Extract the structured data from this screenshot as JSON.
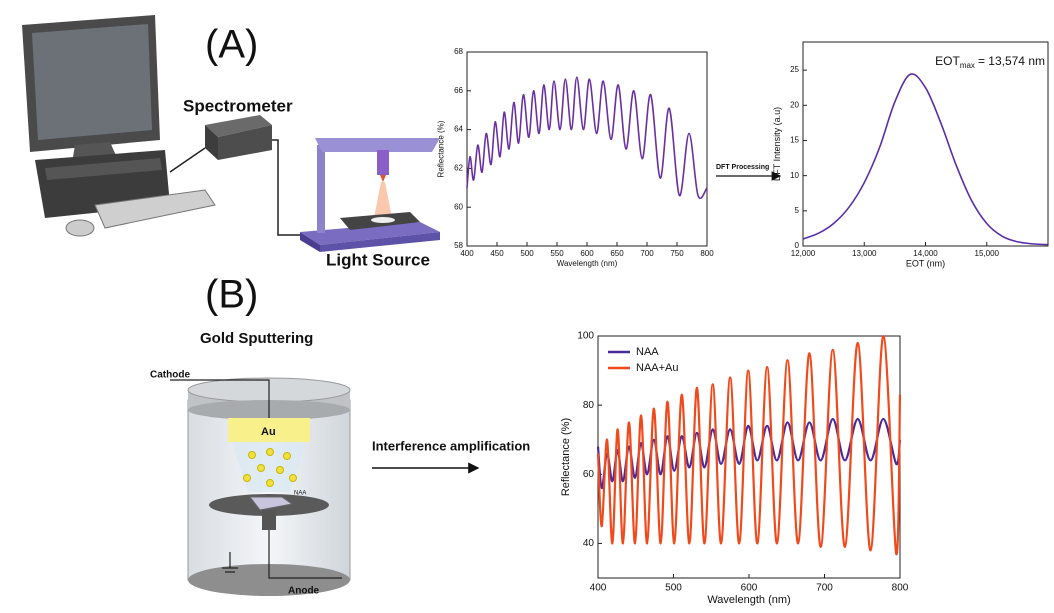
{
  "figure": {
    "panel_a": "(A)",
    "panel_b": "(B)",
    "spectrometer": "Spectrometer",
    "light_source": "Light Source",
    "dft_arrow": "DFT Processing",
    "gold_sputtering": "Gold Sputtering",
    "cathode": "Cathode",
    "au": "Au",
    "naa": "NAA",
    "anode": "Anode",
    "amplification_arrow": "Interference amplification"
  },
  "chart_data": [
    {
      "type": "line",
      "xlabel": "Wavelength (nm)",
      "ylabel": "Reflectance (%)",
      "color": "#6a2fa0",
      "x": [
        400,
        405,
        411,
        418,
        425,
        432,
        440,
        447,
        455,
        462,
        470,
        478,
        486,
        494,
        503,
        511,
        520,
        528,
        537,
        545,
        555,
        564,
        574,
        583,
        594,
        604,
        616,
        627,
        640,
        652,
        665,
        678,
        692,
        706,
        722,
        737,
        754,
        770,
        785,
        800
      ],
      "values": [
        61,
        62.6,
        61.4,
        63.2,
        61.8,
        63.8,
        62.2,
        64.4,
        62.6,
        64.9,
        63,
        65.4,
        63.3,
        65.8,
        63.6,
        66,
        63.8,
        66.3,
        64,
        66.5,
        64,
        66.6,
        64,
        66.7,
        64,
        66.6,
        63.8,
        66.5,
        63.5,
        66.3,
        63,
        66,
        62.5,
        65.8,
        61.5,
        65.1,
        60.6,
        63.8,
        60.6,
        61
      ],
      "xlim": [
        400,
        800
      ],
      "ylim": [
        58,
        68
      ],
      "xticks": [
        400,
        450,
        500,
        550,
        600,
        650,
        700,
        750,
        800
      ],
      "yticks": [
        58,
        60,
        62,
        64,
        66,
        68
      ]
    },
    {
      "type": "line",
      "xlabel": "EOT (nm)",
      "ylabel": "DFT Intensity (a.u)",
      "color": "#5b2ca8",
      "annotation": {
        "text": "EOT",
        "subscript": "max",
        "suffix": "= 13,574 nm"
      },
      "x": [
        12000,
        12250,
        12500,
        12750,
        13000,
        13250,
        13500,
        13750,
        14000,
        14250,
        14500,
        14750,
        15000,
        15250,
        15500,
        15750,
        16000
      ],
      "values": [
        1.0,
        1.8,
        3.2,
        5.5,
        9.0,
        14,
        20.5,
        24.4,
        22.5,
        17.5,
        11.5,
        6.5,
        3.2,
        1.4,
        0.6,
        0.3,
        0.2
      ],
      "xlim": [
        12000,
        16000
      ],
      "ylim": [
        0,
        29
      ],
      "xticks": [
        {
          "value": 12000,
          "label": "12,000"
        },
        {
          "value": 13000,
          "label": "13,000"
        },
        {
          "value": 14000,
          "label": "14,000"
        },
        {
          "value": 15000,
          "label": "15,000"
        }
      ],
      "yticks": [
        0,
        5,
        10,
        15,
        20,
        25
      ]
    },
    {
      "type": "line",
      "xlabel": "Wavelength (nm)",
      "ylabel": "Reflectance (%)",
      "legend": "upper left",
      "x": [
        400,
        405,
        412,
        419,
        426,
        433,
        441,
        449,
        457,
        465,
        474,
        483,
        492,
        501,
        511,
        521,
        531,
        541,
        552,
        563,
        575,
        587,
        599,
        611,
        624,
        637,
        651,
        665,
        680,
        695,
        711,
        727,
        744,
        761,
        778,
        795,
        800
      ],
      "series": [
        {
          "name": "NAA",
          "color": "#4b2a9a",
          "values": [
            68,
            56,
            66,
            58,
            67,
            58,
            68,
            59,
            69,
            60,
            70,
            60,
            71,
            61,
            71,
            62,
            72,
            62,
            73,
            63,
            73,
            63,
            74,
            64,
            74,
            64,
            75,
            64,
            75,
            64,
            76,
            64,
            76,
            64,
            76,
            63,
            70
          ]
        },
        {
          "name": "NAA+Au",
          "color": "#f04a1c",
          "values": [
            66,
            45,
            70,
            40,
            73,
            40,
            75,
            40,
            77,
            40,
            79,
            40,
            81,
            40,
            83,
            40,
            85,
            40,
            86,
            40,
            88,
            40,
            90,
            40,
            91,
            40,
            93,
            40,
            95,
            39,
            96,
            39,
            98,
            38,
            100,
            37,
            83
          ]
        }
      ],
      "xlim": [
        400,
        800
      ],
      "ylim": [
        30,
        100
      ],
      "xticks": [
        400,
        500,
        600,
        700,
        800
      ],
      "yticks": [
        40,
        60,
        80,
        100
      ]
    }
  ]
}
